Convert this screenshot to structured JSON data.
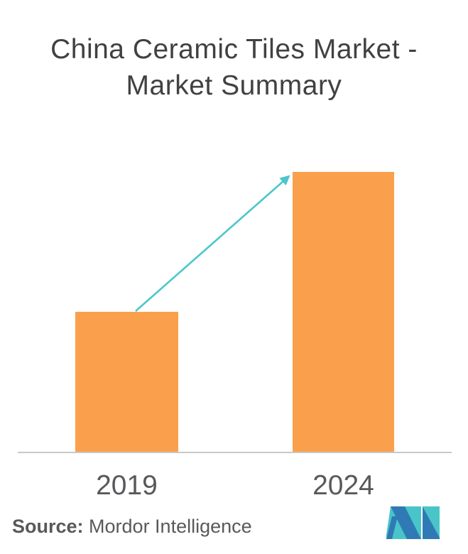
{
  "title": {
    "line1": "China Ceramic Tiles Market -",
    "line2": "Market Summary",
    "color": "#414042"
  },
  "chart_data": {
    "type": "bar",
    "title": "China Ceramic Tiles Market - Market Summary",
    "categories": [
      "2019",
      "2024"
    ],
    "values": [
      1,
      2
    ],
    "value_scale": "relative units; no y-axis, gridlines or data labels are shown in the figure",
    "xlabel": "",
    "ylabel": "",
    "grid": false,
    "legend": false,
    "bar_color": "#FAA04D",
    "axis_line_color": "#C8C8C8",
    "tick_label_color": "#58595B",
    "annotation": {
      "type": "growth-arrow",
      "description": "diagonal arrow from top of 2019 bar pointing to top-left corner of 2024 bar",
      "color": "#4CC6CB"
    }
  },
  "source": {
    "label": "Source:",
    "text": " Mordor Intelligence",
    "color": "#58595B"
  },
  "logo": {
    "name": "Mordor Intelligence logo mark",
    "teal": "#49C5C9",
    "blue": "#2F7AB5"
  }
}
